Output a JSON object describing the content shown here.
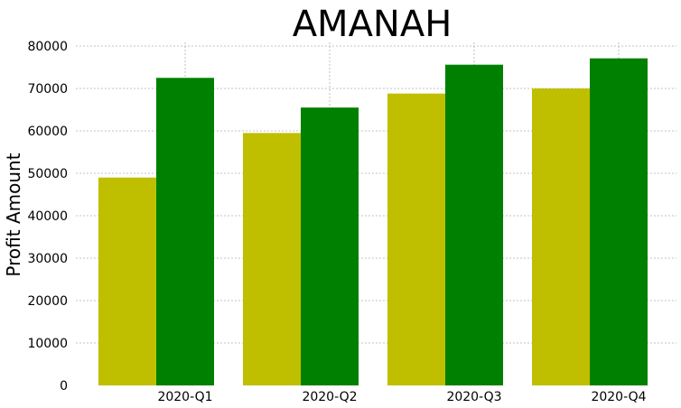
{
  "chart_data": {
    "type": "bar",
    "title": "AMANAH",
    "xlabel": "",
    "ylabel": "Profit Amount",
    "categories": [
      "2020-Q1",
      "2020-Q2",
      "2020-Q3",
      "2020-Q4"
    ],
    "series": [
      {
        "color": "#bfbf00",
        "values": [
          49000,
          59500,
          68800,
          70000
        ]
      },
      {
        "color": "#008000",
        "values": [
          72500,
          65500,
          75600,
          77100
        ]
      }
    ],
    "ylim": [
      0,
      80000
    ],
    "yticks": [
      0,
      10000,
      20000,
      30000,
      40000,
      50000,
      60000,
      70000,
      80000
    ],
    "grid": true,
    "legend": "none"
  }
}
